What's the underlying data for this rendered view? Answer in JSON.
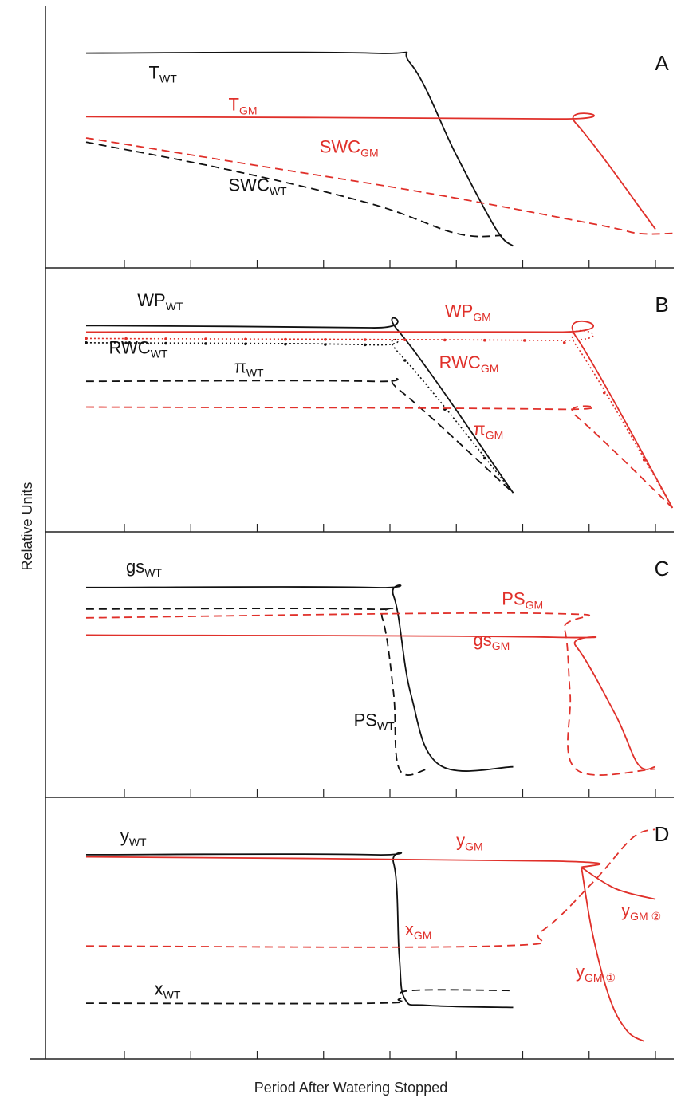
{
  "colors": {
    "wt": "#111111",
    "gm": "#e0302a"
  },
  "chart_data": {
    "type": "line",
    "xlabel": "Period After Watering Stopped",
    "ylabel": "Relative Units",
    "xlim": [
      0,
      100
    ],
    "ylim": [
      0,
      100
    ],
    "grid": false,
    "panels": [
      {
        "panel": "A",
        "series": [
          {
            "name": "T",
            "sub": "WT",
            "group": "wt",
            "style": "solid",
            "x": [
              0,
              50,
              57,
              65,
              72,
              75
            ],
            "y": [
              93,
              93,
              88,
              45,
              10,
              2
            ]
          },
          {
            "name": "T",
            "sub": "GM",
            "group": "gm",
            "style": "solid",
            "x": [
              0,
              82,
              86,
              100
            ],
            "y": [
              63,
              62,
              60,
              10
            ]
          },
          {
            "name": "SWC",
            "sub": "GM",
            "group": "gm",
            "style": "dashed",
            "x": [
              0,
              30,
              60,
              90,
              97,
              103
            ],
            "y": [
              53,
              40,
              27,
              12,
              8,
              8
            ]
          },
          {
            "name": "SWC",
            "sub": "WT",
            "group": "wt",
            "style": "dashed",
            "x": [
              0,
              25,
              50,
              65,
              73
            ],
            "y": [
              51,
              38,
              22,
              8,
              7
            ]
          }
        ],
        "labels": [
          {
            "text": "T",
            "sub": "WT",
            "group": "wt",
            "x": 11,
            "y": 81
          },
          {
            "text": "T",
            "sub": "GM",
            "group": "gm",
            "x": 25,
            "y": 66
          },
          {
            "text": "SWC",
            "sub": "GM",
            "group": "gm",
            "x": 41,
            "y": 46
          },
          {
            "text": "SWC",
            "sub": "WT",
            "group": "wt",
            "x": 25,
            "y": 28
          }
        ]
      },
      {
        "panel": "B",
        "series": [
          {
            "name": "WP",
            "sub": "WT",
            "group": "wt",
            "style": "solid",
            "x": [
              0,
              50,
              55,
              75
            ],
            "y": [
              88,
              87,
              85,
              10
            ]
          },
          {
            "name": "WP",
            "sub": "GM",
            "group": "gm",
            "style": "solid",
            "x": [
              0,
              82,
              86,
              103
            ],
            "y": [
              85,
              85,
              83,
              3
            ]
          },
          {
            "name": "RWC",
            "sub": "WT",
            "group": "wt",
            "style": "dotted",
            "x": [
              0,
              50,
              55,
              75
            ],
            "y": [
              80,
              79,
              75,
              10
            ]
          },
          {
            "name": "RWC",
            "sub": "GM",
            "group": "gm",
            "style": "dotted",
            "x": [
              0,
              82,
              86,
              103
            ],
            "y": [
              82,
              81,
              79,
              3
            ]
          },
          {
            "name": "π",
            "sub": "WT",
            "group": "wt",
            "style": "dashed",
            "x": [
              0,
              50,
              55,
              75
            ],
            "y": [
              62,
              62,
              58,
              10
            ]
          },
          {
            "name": "π",
            "sub": "GM",
            "group": "gm",
            "style": "dashed",
            "x": [
              0,
              82,
              86,
              103
            ],
            "y": [
              50,
              49,
              46,
              3
            ]
          }
        ],
        "labels": [
          {
            "text": "WP",
            "sub": "WT",
            "group": "wt",
            "x": 9,
            "y": 97
          },
          {
            "text": "WP",
            "sub": "GM",
            "group": "gm",
            "x": 63,
            "y": 92
          },
          {
            "text": "RWC",
            "sub": "WT",
            "group": "wt",
            "x": 4,
            "y": 75
          },
          {
            "text": "RWC",
            "sub": "GM",
            "group": "gm",
            "x": 62,
            "y": 68
          },
          {
            "text": "π",
            "sub": "WT",
            "group": "wt",
            "x": 26,
            "y": 66
          },
          {
            "text": "π",
            "sub": "GM",
            "group": "gm",
            "x": 68,
            "y": 37
          }
        ]
      },
      {
        "panel": "C",
        "series": [
          {
            "name": "gs",
            "sub": "WT",
            "group": "wt",
            "style": "solid",
            "x": [
              0,
              50,
              54,
              57,
              62,
              75
            ],
            "y": [
              89,
              89,
              85,
              40,
              7,
              6
            ]
          },
          {
            "name": "PS",
            "sub": "WT",
            "group": "wt",
            "style": "dashed",
            "x": [
              0,
              49,
              52,
              54,
              55,
              60
            ],
            "y": [
              79,
              79,
              75,
              40,
              5,
              5
            ]
          },
          {
            "name": "PS",
            "sub": "GM",
            "group": "gm",
            "style": "dashed",
            "x": [
              0,
              81,
              84,
              85,
              86,
              100
            ],
            "y": [
              75,
              77,
              70,
              40,
              5,
              5
            ]
          },
          {
            "name": "gs",
            "sub": "GM",
            "group": "gm",
            "style": "solid",
            "x": [
              0,
              82,
              86,
              93,
              97,
              100
            ],
            "y": [
              67,
              66,
              62,
              30,
              7,
              6
            ]
          }
        ],
        "labels": [
          {
            "text": "gs",
            "sub": "WT",
            "group": "wt",
            "x": 7,
            "y": 96
          },
          {
            "text": "PS",
            "sub": "GM",
            "group": "gm",
            "x": 73,
            "y": 81
          },
          {
            "text": "gs",
            "sub": "GM",
            "group": "gm",
            "x": 68,
            "y": 62
          },
          {
            "text": "PS",
            "sub": "WT",
            "group": "wt",
            "x": 47,
            "y": 25
          }
        ]
      },
      {
        "panel": "D",
        "series": [
          {
            "name": "y",
            "sub": "WT",
            "group": "wt",
            "style": "solid",
            "x": [
              0,
              50,
              54,
              55,
              56,
              60,
              75
            ],
            "y": [
              88,
              88,
              84,
              40,
              20,
              17,
              16
            ]
          },
          {
            "name": "y",
            "sub": "GM",
            "group": "gm",
            "style": "solid",
            "x": [
              0,
              82,
              87
            ],
            "y": [
              87,
              85,
              82
            ]
          },
          {
            "name": "y",
            "sub": "GM ②",
            "group": "gm",
            "style": "solid",
            "x": [
              87,
              93,
              100
            ],
            "y": [
              82,
              72,
              67
            ]
          },
          {
            "name": "y",
            "sub": "GM ①",
            "group": "gm",
            "style": "solid",
            "x": [
              87,
              89,
              92,
              95,
              98
            ],
            "y": [
              82,
              50,
              20,
              5,
              0
            ]
          },
          {
            "name": "x",
            "sub": "GM",
            "group": "gm",
            "style": "dashed",
            "x": [
              0,
              72,
              80,
              89,
              96,
              100
            ],
            "y": [
              45,
              45,
              52,
              75,
              96,
              100
            ]
          },
          {
            "name": "x",
            "sub": "WT",
            "group": "wt",
            "style": "dashed",
            "x": [
              0,
              50,
              55,
              57,
              75
            ],
            "y": [
              18,
              18,
              20,
              24,
              24
            ]
          }
        ],
        "labels": [
          {
            "text": "y",
            "sub": "WT",
            "group": "wt",
            "x": 6,
            "y": 94
          },
          {
            "text": "y",
            "sub": "GM",
            "group": "gm",
            "x": 65,
            "y": 92
          },
          {
            "text": "y",
            "sub": "GM ②",
            "group": "gm",
            "x": 94,
            "y": 59
          },
          {
            "text": "x",
            "sub": "GM",
            "group": "gm",
            "x": 56,
            "y": 50
          },
          {
            "text": "y",
            "sub": "GM ①",
            "group": "gm",
            "x": 86,
            "y": 30
          },
          {
            "text": "x",
            "sub": "WT",
            "group": "wt",
            "x": 12,
            "y": 22
          }
        ]
      }
    ]
  }
}
